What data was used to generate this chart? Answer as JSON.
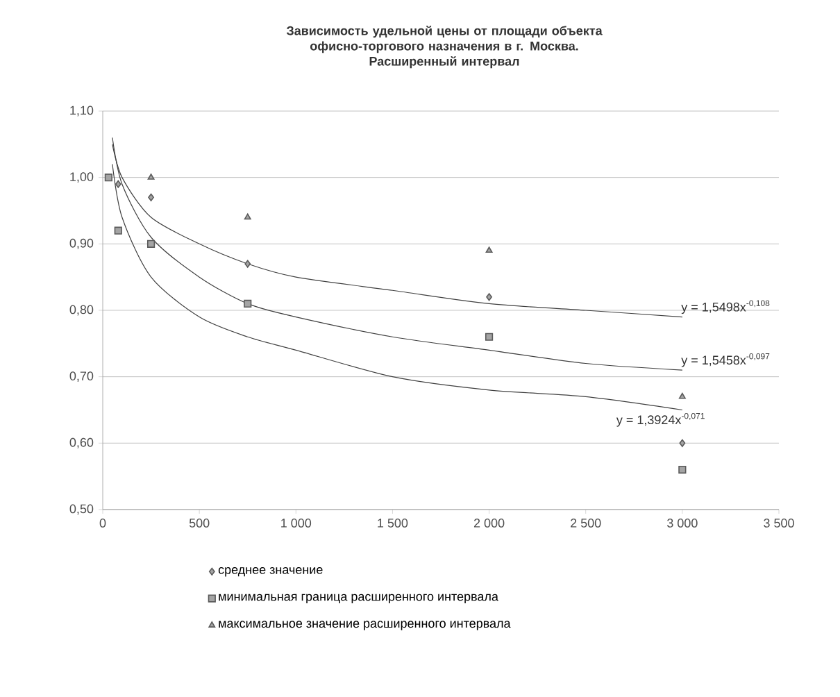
{
  "chart_data": {
    "type": "scatter",
    "title": "Зависимость удельной цены от площади объекта офисно-торгового назначения в г. Москва.",
    "subtitle": "Расширенный интервал",
    "xlim": [
      0,
      3500
    ],
    "ylim": [
      0.5,
      1.1
    ],
    "xticks": [
      0,
      500,
      {
        "value": 1000,
        "label": "1 000"
      },
      {
        "value": 1500,
        "label": "1 500"
      },
      {
        "value": 2000,
        "label": "2 000"
      },
      {
        "value": 2500,
        "label": "2 500"
      },
      {
        "value": 3000,
        "label": "3 000"
      },
      {
        "value": 3500,
        "label": "3 500"
      }
    ],
    "yticks": [
      {
        "value": 0.5,
        "label": "0,50"
      },
      {
        "value": 0.6,
        "label": "0,60"
      },
      {
        "value": 0.7,
        "label": "0,70"
      },
      {
        "value": 0.8,
        "label": "0,80"
      },
      {
        "value": 0.9,
        "label": "0,90"
      },
      {
        "value": 1.0,
        "label": "1,00"
      },
      {
        "value": 1.1,
        "label": "1,10"
      }
    ],
    "grid": "y",
    "legend": "bottom",
    "series": [
      {
        "name": "среднее значение",
        "marker": "diamond",
        "color": "#5a5a5a",
        "x": [
          80,
          250,
          750,
          2000,
          3000
        ],
        "values": [
          0.99,
          0.97,
          0.87,
          0.82,
          0.6
        ]
      },
      {
        "name": "минимальная граница расширенного интервала",
        "marker": "square",
        "color": "#5a5a5a",
        "x": [
          30,
          80,
          250,
          750,
          2000,
          3000
        ],
        "values": [
          1.0,
          0.92,
          0.9,
          0.81,
          0.76,
          0.56
        ]
      },
      {
        "name": "максимальное значение расширенного интервала",
        "marker": "triangle",
        "color": "#5a5a5a",
        "x": [
          250,
          750,
          2000,
          3000
        ],
        "values": [
          1.0,
          0.94,
          0.89,
          0.67
        ]
      },
      {
        "type": "line",
        "marker": "none",
        "color": "#404040",
        "x": [
          50,
          100,
          250,
          500,
          750,
          1000,
          1500,
          2000,
          2500,
          3000
        ],
        "values": [
          1.05,
          1.0,
          0.94,
          0.9,
          0.87,
          0.85,
          0.83,
          0.81,
          0.8,
          0.79
        ]
      },
      {
        "type": "line",
        "marker": "none",
        "color": "#404040",
        "x": [
          50,
          100,
          250,
          500,
          750,
          1000,
          1500,
          2000,
          2500,
          3000
        ],
        "values": [
          1.06,
          0.99,
          0.91,
          0.85,
          0.81,
          0.79,
          0.76,
          0.74,
          0.72,
          0.71
        ]
      },
      {
        "type": "line",
        "marker": "none",
        "color": "#404040",
        "x": [
          50,
          100,
          250,
          500,
          750,
          1000,
          1500,
          2000,
          2500,
          3000
        ],
        "values": [
          1.02,
          0.94,
          0.85,
          0.79,
          0.76,
          0.74,
          0.7,
          0.68,
          0.67,
          0.65
        ]
      }
    ],
    "annotations": [
      "y = 1,5498x$^{-0,108}$",
      "y = 1,5458x$^{-0,097}$",
      "y = 1,3924x$^{-0,071}$"
    ]
  }
}
